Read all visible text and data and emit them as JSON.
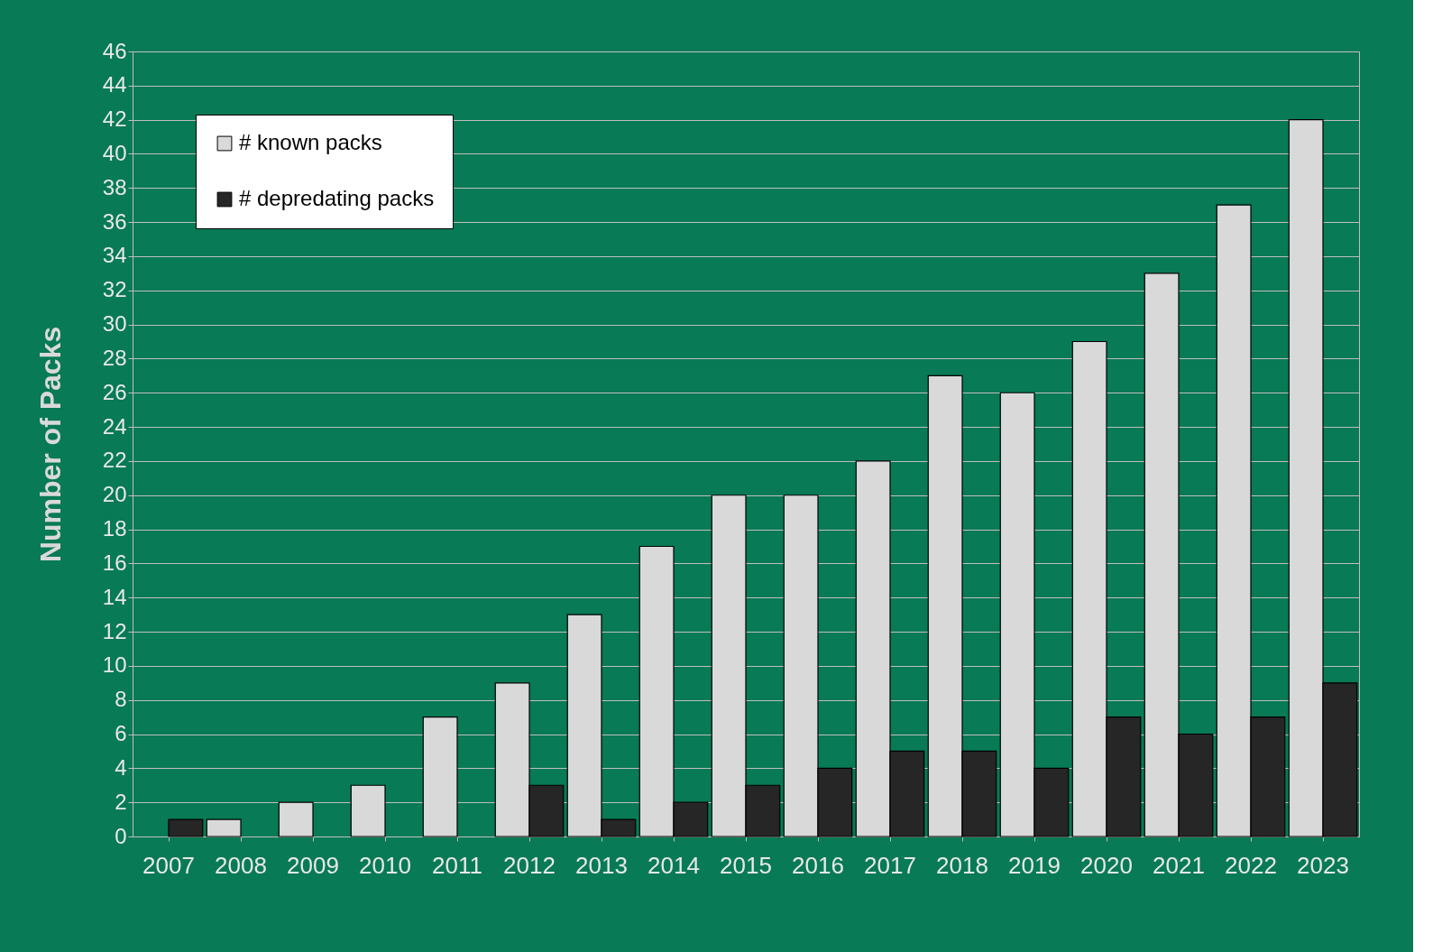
{
  "chart_data": {
    "type": "bar",
    "ylabel": "Number of Packs",
    "categories": [
      "2007",
      "2008",
      "2009",
      "2010",
      "2011",
      "2012",
      "2013",
      "2014",
      "2015",
      "2016",
      "2017",
      "2018",
      "2019",
      "2020",
      "2021",
      "2022",
      "2023"
    ],
    "series": [
      {
        "name": "# known packs",
        "color": "#d9d9d9",
        "values": [
          0,
          1,
          2,
          3,
          7,
          9,
          13,
          17,
          20,
          20,
          22,
          27,
          26,
          29,
          33,
          37,
          42
        ]
      },
      {
        "name": "# depredating packs",
        "color": "#262626",
        "values": [
          1,
          0,
          0,
          0,
          0,
          3,
          1,
          2,
          3,
          4,
          5,
          5,
          4,
          7,
          6,
          7,
          9
        ]
      }
    ],
    "ylim": [
      0,
      46
    ],
    "yticks": [
      0,
      2,
      4,
      6,
      8,
      10,
      12,
      14,
      16,
      18,
      20,
      22,
      24,
      26,
      28,
      30,
      32,
      34,
      36,
      38,
      40,
      42,
      44,
      46
    ],
    "grid": "y",
    "legend": "top left"
  }
}
